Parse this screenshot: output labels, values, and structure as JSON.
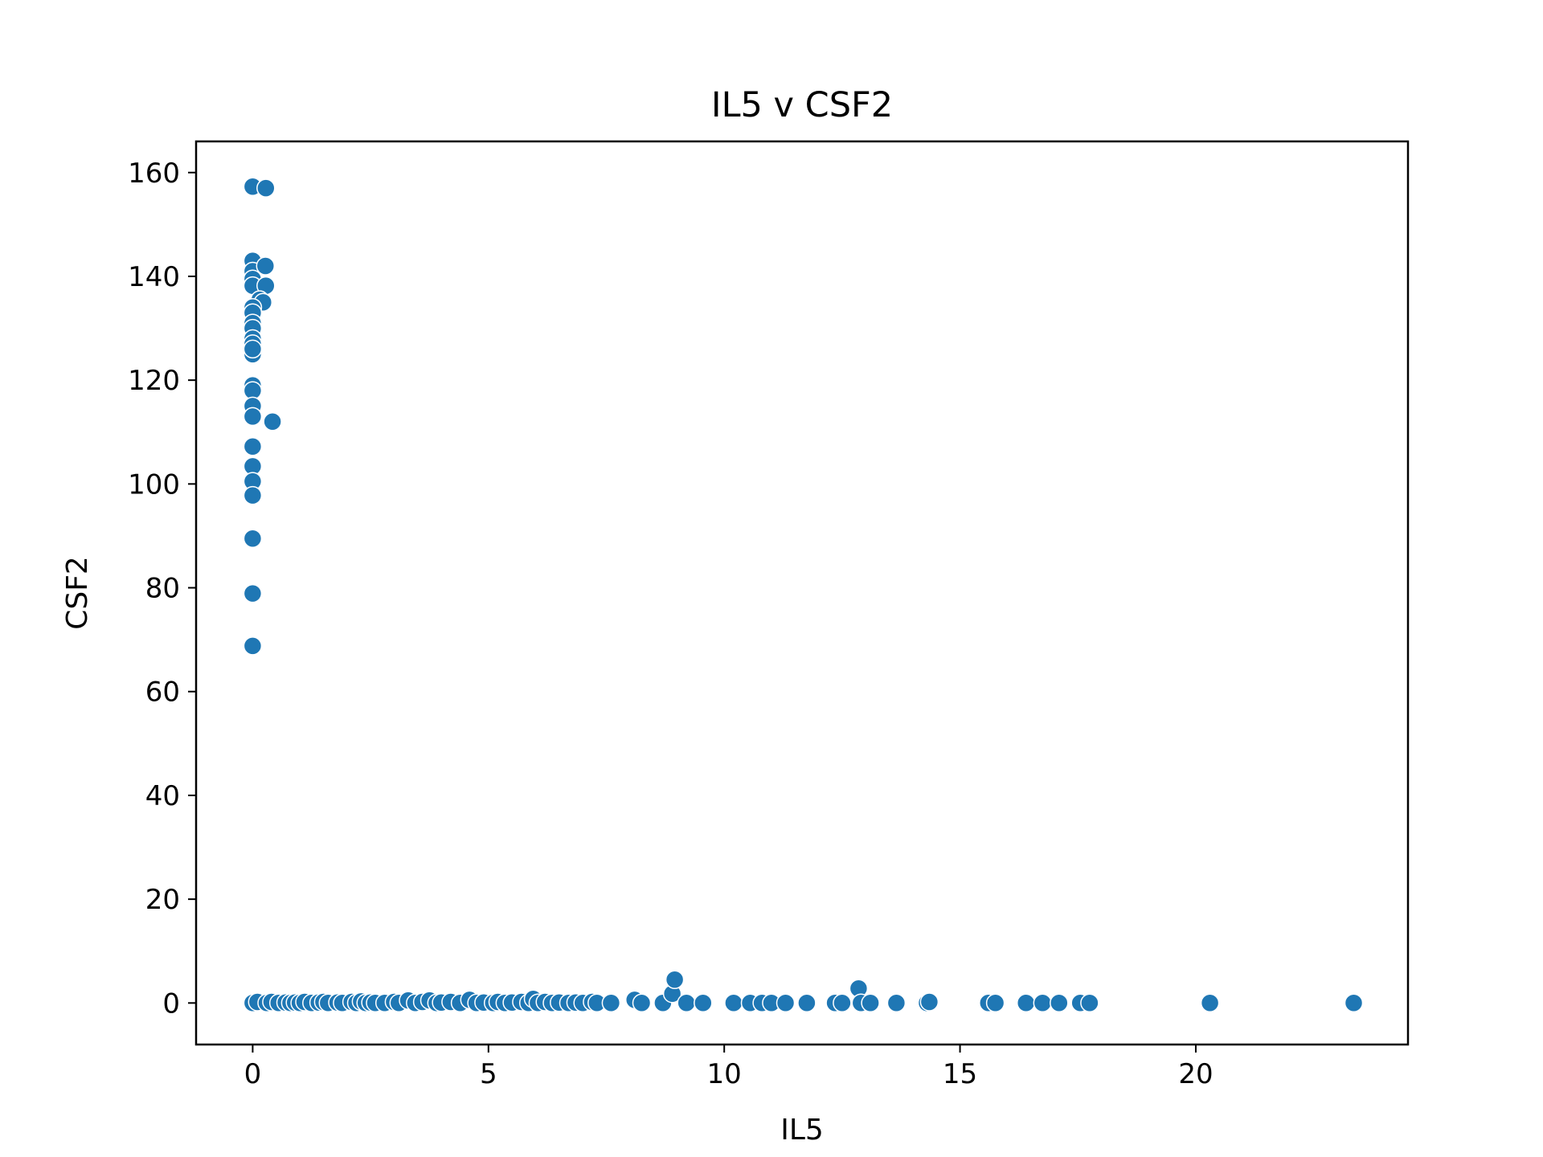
{
  "chart_data": {
    "type": "scatter",
    "title": "IL5 v CSF2",
    "xlabel": "IL5",
    "ylabel": "CSF2",
    "xlim": [
      -1.2,
      24.5
    ],
    "ylim": [
      -8,
      166
    ],
    "xticks": [
      0,
      5,
      10,
      15,
      20
    ],
    "yticks": [
      0,
      20,
      40,
      60,
      80,
      100,
      120,
      140,
      160
    ],
    "grid": false,
    "legend": "none",
    "marker_color": "#1f77b4",
    "marker_edge_color": "#ffffff",
    "series": [
      {
        "points": [
          [
            0,
            157.3
          ],
          [
            0.28,
            157
          ],
          [
            0,
            143
          ],
          [
            0,
            141
          ],
          [
            0.27,
            142
          ],
          [
            0,
            139.5
          ],
          [
            0,
            138.2
          ],
          [
            0.28,
            138.2
          ],
          [
            0.15,
            135.5
          ],
          [
            0.22,
            135
          ],
          [
            0,
            134
          ],
          [
            0,
            133
          ],
          [
            0,
            131
          ],
          [
            0,
            130
          ],
          [
            0,
            128
          ],
          [
            0,
            127
          ],
          [
            0,
            125
          ],
          [
            0,
            126
          ],
          [
            0,
            119
          ],
          [
            0,
            118
          ],
          [
            0,
            115
          ],
          [
            0,
            113
          ],
          [
            0.42,
            112
          ],
          [
            0,
            107.2
          ],
          [
            0,
            103.4
          ],
          [
            0,
            100.5
          ],
          [
            0,
            97.8
          ],
          [
            0,
            89.5
          ],
          [
            0,
            78.9
          ],
          [
            0,
            68.8
          ],
          [
            0,
            0
          ],
          [
            0.1,
            0.2
          ],
          [
            0.3,
            0
          ],
          [
            0.4,
            0.2
          ],
          [
            0.55,
            0
          ],
          [
            0.7,
            0.1
          ],
          [
            0.8,
            0
          ],
          [
            0.9,
            0.1
          ],
          [
            1.0,
            0
          ],
          [
            1.1,
            0.2
          ],
          [
            1.25,
            0
          ],
          [
            1.4,
            0.1
          ],
          [
            1.5,
            0.2
          ],
          [
            1.6,
            0
          ],
          [
            1.8,
            0.1
          ],
          [
            1.9,
            0
          ],
          [
            2.1,
            0.2
          ],
          [
            2.2,
            0
          ],
          [
            2.3,
            0.3
          ],
          [
            2.4,
            0
          ],
          [
            2.5,
            0.1
          ],
          [
            2.6,
            0
          ],
          [
            2.8,
            0
          ],
          [
            3.0,
            0.2
          ],
          [
            3.1,
            0
          ],
          [
            3.3,
            0.5
          ],
          [
            3.45,
            0
          ],
          [
            3.6,
            0.2
          ],
          [
            3.75,
            0.5
          ],
          [
            3.9,
            0
          ],
          [
            4.0,
            0.1
          ],
          [
            4.2,
            0.2
          ],
          [
            4.4,
            0
          ],
          [
            4.6,
            0.6
          ],
          [
            4.75,
            0
          ],
          [
            4.9,
            0.1
          ],
          [
            5.1,
            0
          ],
          [
            5.2,
            0.2
          ],
          [
            5.35,
            0
          ],
          [
            5.5,
            0.1
          ],
          [
            5.7,
            0.2
          ],
          [
            5.85,
            0
          ],
          [
            5.95,
            0.8
          ],
          [
            6.05,
            0
          ],
          [
            6.2,
            0.2
          ],
          [
            6.35,
            0
          ],
          [
            6.5,
            0.1
          ],
          [
            6.7,
            0
          ],
          [
            6.85,
            0.1
          ],
          [
            7.0,
            0
          ],
          [
            7.2,
            0.2
          ],
          [
            7.3,
            0
          ],
          [
            7.6,
            0
          ],
          [
            8.1,
            0.6
          ],
          [
            8.25,
            0
          ],
          [
            8.7,
            0
          ],
          [
            8.9,
            1.8
          ],
          [
            8.95,
            4.5
          ],
          [
            9.2,
            0
          ],
          [
            9.55,
            0
          ],
          [
            10.2,
            0
          ],
          [
            10.55,
            0
          ],
          [
            10.8,
            0
          ],
          [
            11.0,
            0
          ],
          [
            11.3,
            0
          ],
          [
            11.75,
            0
          ],
          [
            12.35,
            0
          ],
          [
            12.5,
            0
          ],
          [
            12.85,
            2.8
          ],
          [
            12.9,
            0
          ],
          [
            13.1,
            0
          ],
          [
            13.65,
            0
          ],
          [
            14.3,
            0
          ],
          [
            14.35,
            0.2
          ],
          [
            15.6,
            0
          ],
          [
            15.75,
            0
          ],
          [
            16.4,
            0
          ],
          [
            16.75,
            0
          ],
          [
            17.1,
            0
          ],
          [
            17.55,
            0
          ],
          [
            17.75,
            0
          ],
          [
            20.3,
            0
          ],
          [
            23.35,
            0
          ]
        ]
      }
    ]
  }
}
